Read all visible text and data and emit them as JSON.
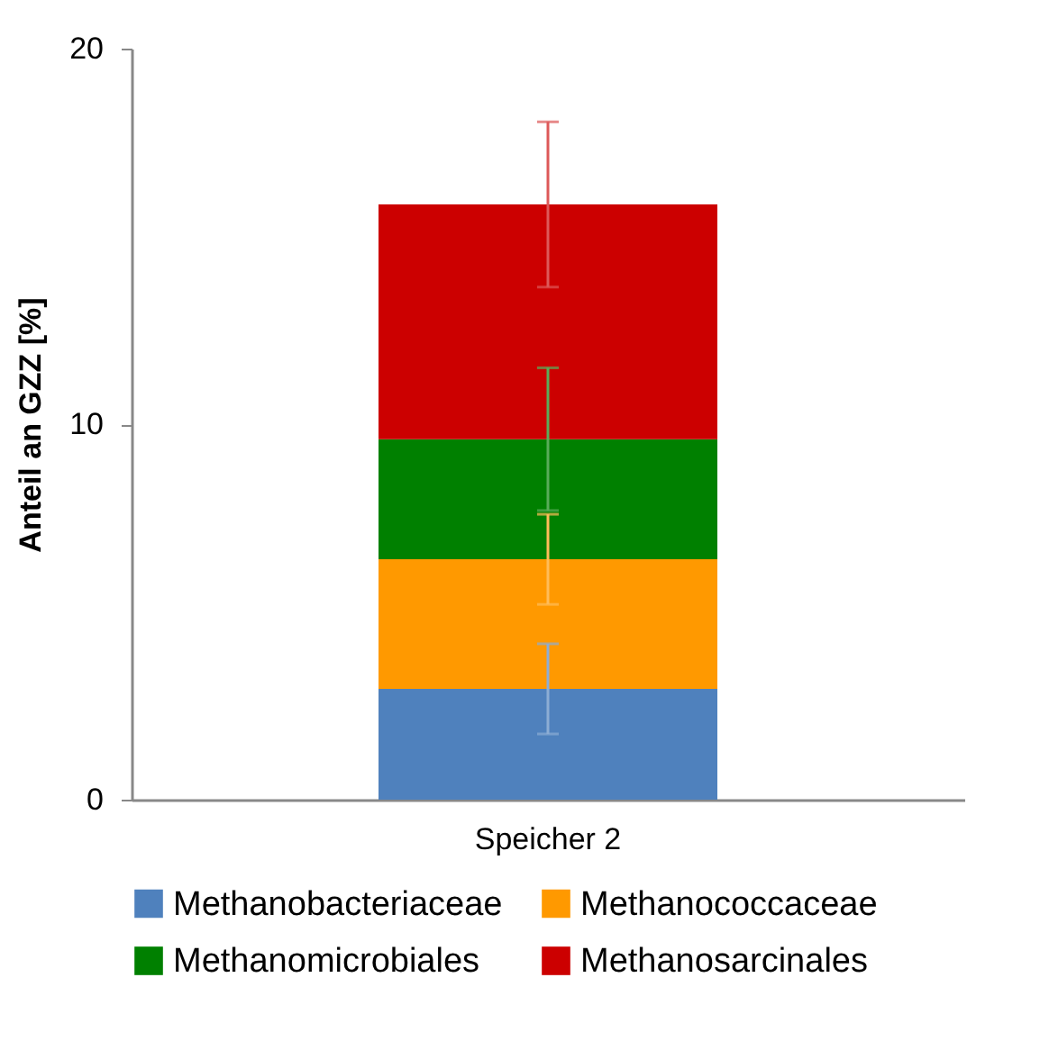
{
  "chart_data": {
    "type": "bar",
    "stacked": true,
    "categories": [
      "Speicher 2"
    ],
    "ylabel": "Anteil an GZZ [%]",
    "ylim": [
      0,
      20
    ],
    "yticks": [
      0,
      10,
      20
    ],
    "grid": false,
    "legend": "bottom",
    "series": [
      {
        "name": "Methanobacteriaceae",
        "color": "#4f81bd",
        "values": [
          2.95
        ],
        "errors": [
          1.2
        ]
      },
      {
        "name": "Methanococcaceae",
        "color": "#ff9900",
        "values": [
          3.45
        ],
        "errors": [
          1.2
        ]
      },
      {
        "name": "Methanomicrobiales",
        "color": "#008000",
        "values": [
          3.2
        ],
        "errors": [
          1.9
        ]
      },
      {
        "name": "Methanosarcinales",
        "color": "#cc0000",
        "values": [
          6.25
        ],
        "errors": [
          2.2
        ]
      }
    ]
  }
}
